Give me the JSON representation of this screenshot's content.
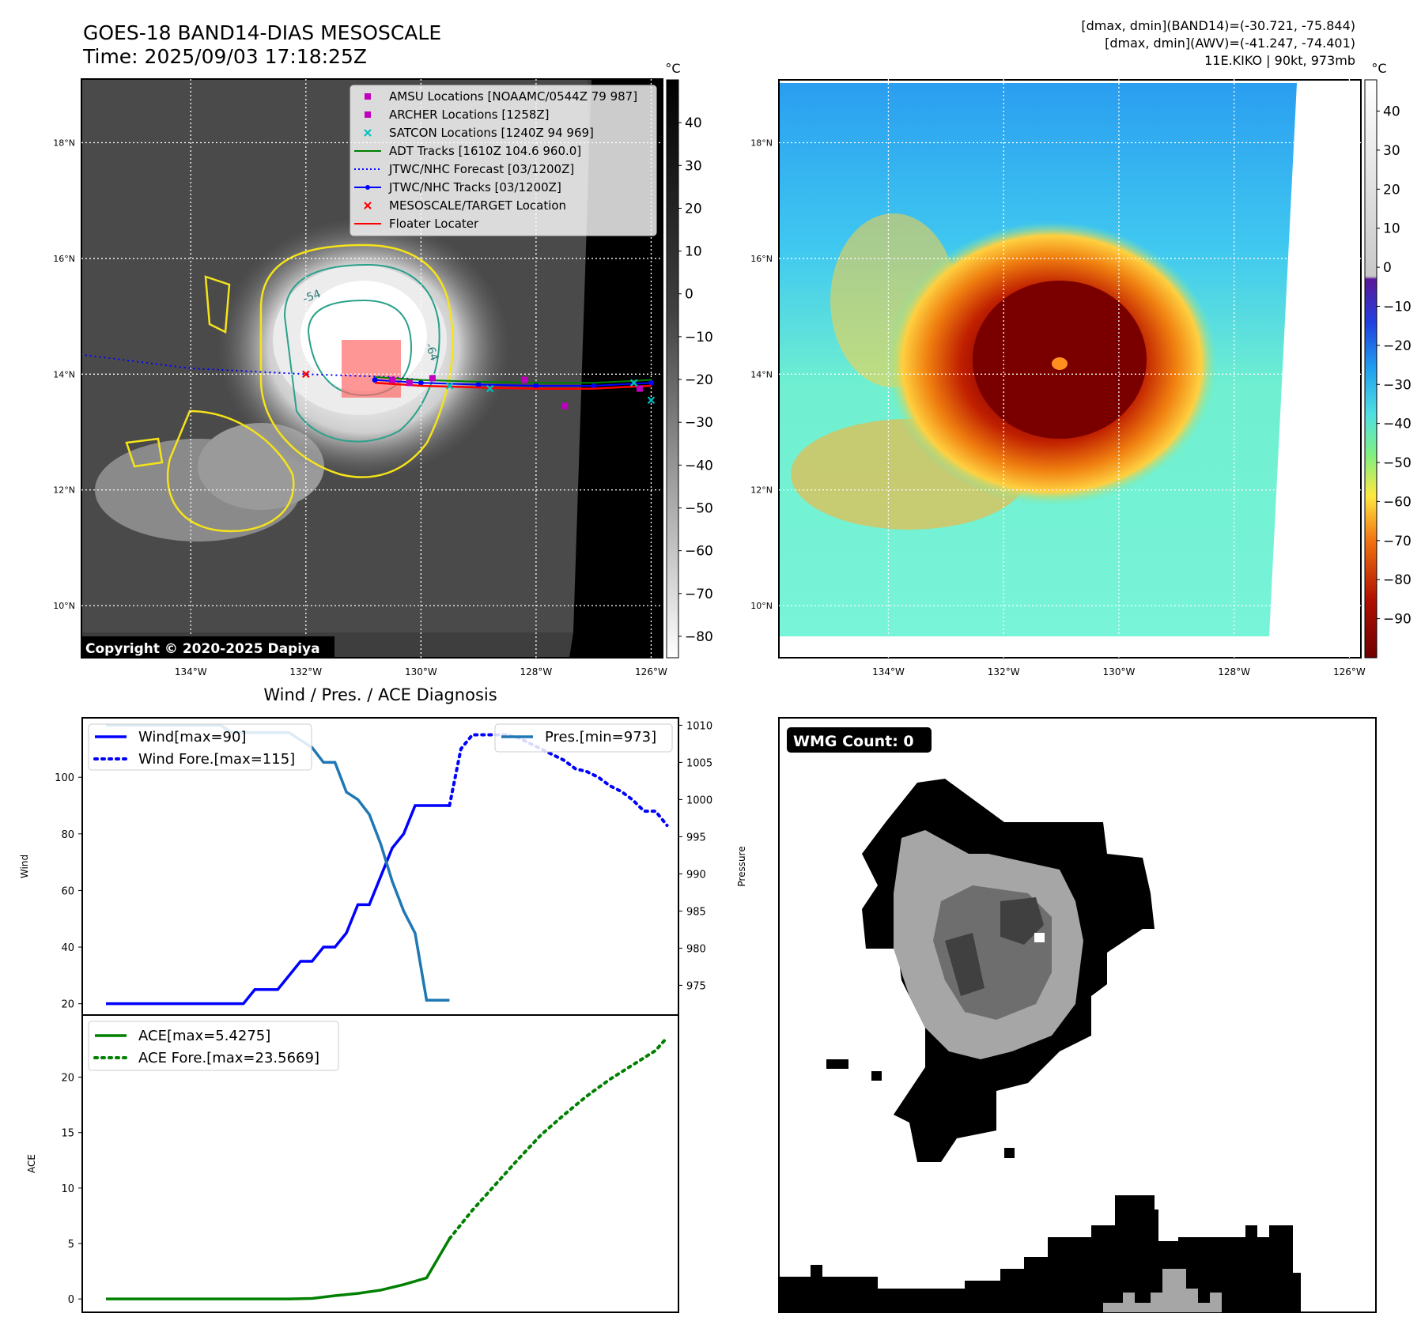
{
  "header": {
    "title_line1": "GOES-18 BAND14-DIAS MESOSCALE",
    "title_line2": "Time: 2025/09/03 17:18:25Z",
    "info_line1": "[dmax, dmin](BAND14)=(-30.721, -75.844)",
    "info_line2": "[dmax, dmin](AWV)=(-41.247, -74.401)",
    "info_line3": "11E.KIKO | 90kt, 973mb"
  },
  "map_axes": {
    "lat_labels": [
      "18°N",
      "16°N",
      "14°N",
      "12°N",
      "10°N"
    ],
    "lat_values": [
      18,
      16,
      14,
      12,
      10
    ],
    "lon_labels": [
      "134°W",
      "132°W",
      "130°W",
      "128°W",
      "126°W"
    ],
    "lon_values": [
      -134,
      -132,
      -130,
      -128,
      -126
    ],
    "lat_range": [
      9.1,
      19.1
    ],
    "lon_range": [
      -135.9,
      -125.8
    ]
  },
  "ir_panel": {
    "copyright": "Copyright © 2020-2025 Dapiya",
    "colorbar_unit": "°C",
    "colorbar_ticks": [
      "40",
      "30",
      "20",
      "10",
      "0",
      "−10",
      "−20",
      "−30",
      "−40",
      "−50",
      "−60",
      "−70",
      "−80"
    ],
    "colorbar_values": [
      40,
      30,
      20,
      10,
      0,
      -10,
      -20,
      -30,
      -40,
      -50,
      -60,
      -70,
      -80
    ],
    "colorbar_range": [
      -85,
      50
    ],
    "legend": [
      {
        "label": "AMSU Locations [NOAAMC/0544Z 79 987]",
        "marker": "square",
        "color": "#bf00bf"
      },
      {
        "label": "ARCHER Locations [1258Z]",
        "marker": "square",
        "color": "#bf00bf"
      },
      {
        "label": "SATCON Locations [1240Z 94 969]",
        "marker": "x",
        "color": "#00bfbf"
      },
      {
        "label": "ADT Tracks [1610Z 104.6 960.0]",
        "marker": "line",
        "color": "#008000"
      },
      {
        "label": "JTWC/NHC Forecast [03/1200Z]",
        "marker": "dotted",
        "color": "#0000ff"
      },
      {
        "label": "JTWC/NHC Tracks [03/1200Z]",
        "marker": "line-dot",
        "color": "#0000ff"
      },
      {
        "label": "MESOSCALE/TARGET Location",
        "marker": "x",
        "color": "#ff0000"
      },
      {
        "label": "Floater Locater",
        "marker": "line",
        "color": "#ff0000"
      }
    ],
    "contour_labels": [
      "-54",
      "-64"
    ]
  },
  "awv_panel": {
    "colorbar_unit": "°C",
    "colorbar_ticks": [
      "40",
      "30",
      "20",
      "10",
      "0",
      "−10",
      "−20",
      "−30",
      "−40",
      "−50",
      "−60",
      "−70",
      "−80",
      "−90"
    ],
    "colorbar_values": [
      40,
      30,
      20,
      10,
      0,
      -10,
      -20,
      -30,
      -40,
      -50,
      -60,
      -70,
      -80,
      -90
    ],
    "colorbar_range": [
      -100,
      48
    ]
  },
  "wmg_panel": {
    "badge": "WMG Count: 0"
  },
  "chart_data": [
    {
      "type": "line",
      "title": "Wind / Pres. / ACE Diagnosis",
      "ylabel": "Wind",
      "y2label": "Pressure",
      "ylim": [
        16,
        121
      ],
      "y2lim": [
        971,
        1011
      ],
      "yticks": [
        20,
        40,
        60,
        80,
        100
      ],
      "y2ticks": [
        975,
        980,
        985,
        990,
        995,
        1000,
        1005,
        1010
      ],
      "x_count": 50,
      "series": [
        {
          "name": "Wind[max=90]",
          "axis": "left",
          "style": "solid",
          "color": "#0000ff",
          "x": [
            0,
            1,
            2,
            3,
            4,
            5,
            6,
            7,
            8,
            9,
            10,
            11,
            12,
            13,
            14,
            15,
            16,
            17,
            18,
            19,
            20,
            21,
            22,
            23,
            24,
            25,
            26,
            27,
            28,
            29,
            30
          ],
          "values": [
            20,
            20,
            20,
            20,
            20,
            20,
            20,
            20,
            20,
            20,
            20,
            20,
            20,
            25,
            25,
            25,
            30,
            35,
            35,
            40,
            40,
            45,
            55,
            55,
            65,
            75,
            80,
            90,
            90,
            90,
            90
          ]
        },
        {
          "name": "Wind Fore.[max=115]",
          "axis": "left",
          "style": "dotted",
          "color": "#0000ff",
          "x": [
            30,
            31,
            32,
            33,
            34,
            35,
            36,
            37,
            38,
            39,
            40,
            41,
            42,
            43,
            44,
            45,
            46,
            47,
            48,
            49
          ],
          "values": [
            90,
            110,
            115,
            115,
            115,
            115,
            114,
            112,
            110,
            108,
            106,
            103,
            102,
            100,
            97,
            95,
            92,
            88,
            88,
            83
          ]
        },
        {
          "name": "Pres.[min=973]",
          "axis": "right",
          "style": "solid",
          "color": "#1f77b4",
          "x": [
            0,
            1,
            2,
            3,
            4,
            5,
            6,
            7,
            8,
            9,
            10,
            11,
            12,
            13,
            14,
            15,
            16,
            17,
            18,
            19,
            20,
            21,
            22,
            23,
            24,
            25,
            26,
            27,
            28,
            29,
            30
          ],
          "values": [
            1010,
            1010,
            1010,
            1010,
            1010,
            1010,
            1010,
            1010,
            1010,
            1010,
            1010,
            1009,
            1009,
            1009,
            1009,
            1009,
            1009,
            1008,
            1007,
            1005,
            1005,
            1001,
            1000,
            998,
            994,
            989,
            985,
            982,
            973,
            973,
            973
          ]
        }
      ]
    },
    {
      "type": "line",
      "ylabel": "ACE",
      "ylim": [
        -1.2,
        25.6
      ],
      "yticks": [
        0,
        5,
        10,
        15,
        20
      ],
      "x_count": 50,
      "series": [
        {
          "name": "ACE[max=5.4275]",
          "style": "solid",
          "color": "#008000",
          "x": [
            0,
            2,
            4,
            6,
            8,
            10,
            12,
            14,
            16,
            18,
            20,
            22,
            24,
            26,
            28,
            30
          ],
          "values": [
            0,
            0,
            0,
            0,
            0,
            0,
            0,
            0,
            0,
            0.05,
            0.3,
            0.5,
            0.8,
            1.3,
            1.9,
            5.43
          ]
        },
        {
          "name": "ACE Fore.[max=23.5669]",
          "style": "dotted",
          "color": "#008000",
          "x": [
            30,
            32,
            34,
            36,
            38,
            40,
            42,
            44,
            46,
            48,
            49
          ],
          "values": [
            5.43,
            8,
            10.3,
            12.6,
            14.8,
            16.6,
            18.3,
            19.8,
            21.1,
            22.4,
            23.57
          ]
        }
      ]
    }
  ]
}
